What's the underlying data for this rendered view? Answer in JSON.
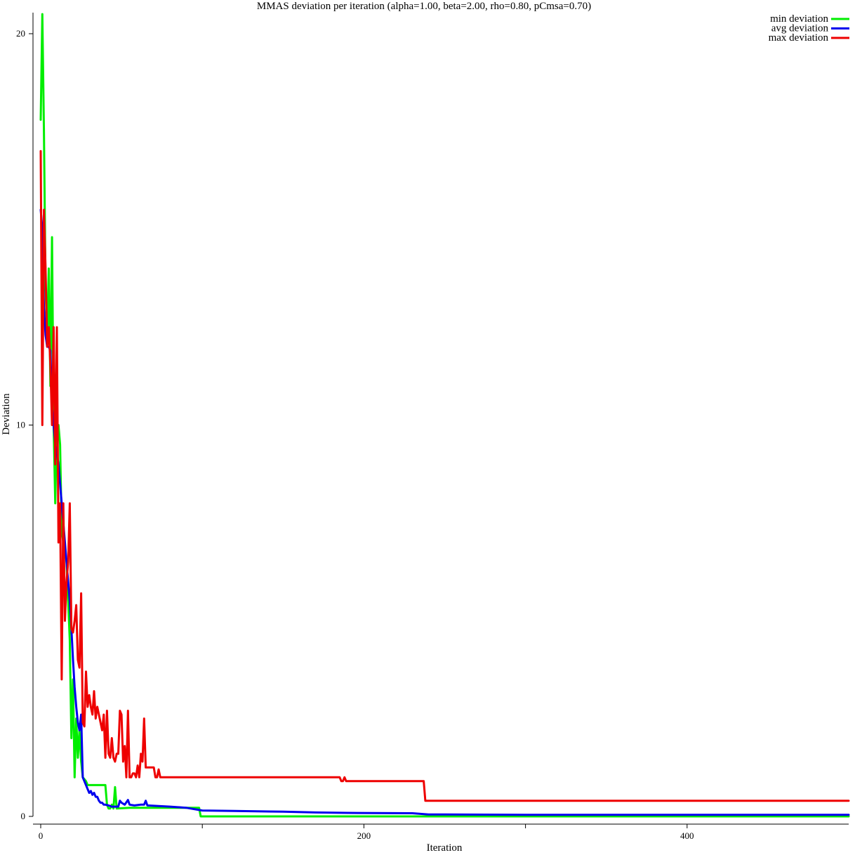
{
  "chart_data": {
    "type": "line",
    "title": "MMAS deviation per iteration (alpha=1.00, beta=2.00, rho=0.80, pCmsa=0.70)",
    "xlabel": "Iteration",
    "ylabel": "Deviation",
    "xlim": [
      0,
      500
    ],
    "ylim": [
      0,
      20.5
    ],
    "xticks": [
      0,
      100,
      200,
      300,
      400
    ],
    "xtick_labels": [
      "0",
      "",
      "200",
      "",
      "400"
    ],
    "yticks": [
      0,
      10,
      20
    ],
    "ytick_labels": [
      "0",
      "10",
      "20"
    ],
    "grid": false,
    "legend": "top-right",
    "series": [
      {
        "name": "min deviation",
        "color": "#00ee00",
        "points": [
          [
            0,
            17.8
          ],
          [
            1,
            20.5
          ],
          [
            2,
            17.5
          ],
          [
            3,
            13.5
          ],
          [
            4,
            12.3
          ],
          [
            5,
            14.0
          ],
          [
            6,
            11.0
          ],
          [
            7,
            14.8
          ],
          [
            8,
            10.0
          ],
          [
            9,
            8.0
          ],
          [
            10,
            10.0
          ],
          [
            11,
            10.0
          ],
          [
            12,
            9.5
          ],
          [
            13,
            7.3
          ],
          [
            14,
            7.0
          ],
          [
            15,
            6.8
          ],
          [
            16,
            6.5
          ],
          [
            17,
            5.5
          ],
          [
            18,
            4.5
          ],
          [
            19,
            2.0
          ],
          [
            20,
            3.5
          ],
          [
            21,
            1.0
          ],
          [
            22,
            2.5
          ],
          [
            23,
            1.5
          ],
          [
            24,
            2.2
          ],
          [
            25,
            1.4
          ],
          [
            26,
            1.0
          ],
          [
            27,
            0.95
          ],
          [
            28,
            0.9
          ],
          [
            29,
            0.8
          ],
          [
            30,
            0.8
          ],
          [
            40,
            0.8
          ],
          [
            41,
            0.3
          ],
          [
            42,
            0.2
          ],
          [
            43,
            0.2
          ],
          [
            44,
            0.3
          ],
          [
            45,
            0.2
          ],
          [
            46,
            0.75
          ],
          [
            47,
            0.2
          ],
          [
            55,
            0.22
          ],
          [
            80,
            0.22
          ],
          [
            98,
            0.22
          ],
          [
            99,
            0.0
          ],
          [
            500,
            0.0
          ]
        ]
      },
      {
        "name": "avg deviation",
        "color": "#0000ee",
        "points": [
          [
            0,
            15.5
          ],
          [
            1,
            15.0
          ],
          [
            2,
            13.0
          ],
          [
            3,
            12.3
          ],
          [
            4,
            12.0
          ],
          [
            5,
            12.0
          ],
          [
            6,
            11.9
          ],
          [
            7,
            10.5
          ],
          [
            8,
            10.0
          ],
          [
            9,
            9.5
          ],
          [
            10,
            9.3
          ],
          [
            11,
            9.0
          ],
          [
            12,
            8.5
          ],
          [
            13,
            8.0
          ],
          [
            14,
            7.5
          ],
          [
            15,
            7.0
          ],
          [
            16,
            6.5
          ],
          [
            17,
            6.0
          ],
          [
            18,
            5.5
          ],
          [
            19,
            4.8
          ],
          [
            20,
            4.0
          ],
          [
            21,
            3.3
          ],
          [
            22,
            2.8
          ],
          [
            23,
            2.4
          ],
          [
            24,
            2.2
          ],
          [
            25,
            2.6
          ],
          [
            26,
            1.0
          ],
          [
            27,
            0.9
          ],
          [
            28,
            0.8
          ],
          [
            29,
            0.7
          ],
          [
            30,
            0.6
          ],
          [
            31,
            0.65
          ],
          [
            32,
            0.55
          ],
          [
            33,
            0.6
          ],
          [
            34,
            0.5
          ],
          [
            35,
            0.5
          ],
          [
            36,
            0.4
          ],
          [
            37,
            0.35
          ],
          [
            38,
            0.35
          ],
          [
            39,
            0.3
          ],
          [
            40,
            0.3
          ],
          [
            42,
            0.28
          ],
          [
            44,
            0.25
          ],
          [
            46,
            0.25
          ],
          [
            48,
            0.25
          ],
          [
            49,
            0.4
          ],
          [
            50,
            0.35
          ],
          [
            52,
            0.3
          ],
          [
            54,
            0.42
          ],
          [
            55,
            0.3
          ],
          [
            58,
            0.28
          ],
          [
            62,
            0.3
          ],
          [
            64,
            0.3
          ],
          [
            65,
            0.4
          ],
          [
            66,
            0.28
          ],
          [
            70,
            0.27
          ],
          [
            80,
            0.25
          ],
          [
            90,
            0.22
          ],
          [
            100,
            0.15
          ],
          [
            120,
            0.14
          ],
          [
            150,
            0.12
          ],
          [
            170,
            0.1
          ],
          [
            190,
            0.09
          ],
          [
            230,
            0.08
          ],
          [
            240,
            0.05
          ],
          [
            300,
            0.04
          ],
          [
            400,
            0.04
          ],
          [
            500,
            0.04
          ]
        ]
      },
      {
        "name": "max deviation",
        "color": "#ee0000",
        "points": [
          [
            0,
            17.0
          ],
          [
            1,
            10.0
          ],
          [
            2,
            15.5
          ],
          [
            3,
            14.0
          ],
          [
            4,
            12.0
          ],
          [
            5,
            12.5
          ],
          [
            6,
            11.5
          ],
          [
            7,
            10.0
          ],
          [
            8,
            12.5
          ],
          [
            9,
            9.0
          ],
          [
            10,
            12.5
          ],
          [
            11,
            7.0
          ],
          [
            12,
            8.0
          ],
          [
            13,
            3.5
          ],
          [
            14,
            8.0
          ],
          [
            15,
            5.0
          ],
          [
            16,
            6.0
          ],
          [
            17,
            6.5
          ],
          [
            18,
            8.0
          ],
          [
            19,
            4.8
          ],
          [
            20,
            4.7
          ],
          [
            21,
            5.0
          ],
          [
            22,
            5.4
          ],
          [
            23,
            4.0
          ],
          [
            24,
            3.8
          ],
          [
            25,
            5.7
          ],
          [
            26,
            2.4
          ],
          [
            27,
            2.3
          ],
          [
            28,
            3.7
          ],
          [
            29,
            2.8
          ],
          [
            30,
            3.1
          ],
          [
            31,
            2.8
          ],
          [
            32,
            2.6
          ],
          [
            33,
            3.2
          ],
          [
            34,
            2.5
          ],
          [
            35,
            2.8
          ],
          [
            36,
            2.6
          ],
          [
            37,
            2.4
          ],
          [
            38,
            2.2
          ],
          [
            39,
            2.6
          ],
          [
            40,
            1.5
          ],
          [
            41,
            2.7
          ],
          [
            42,
            1.6
          ],
          [
            43,
            1.5
          ],
          [
            44,
            2.0
          ],
          [
            45,
            1.5
          ],
          [
            46,
            1.4
          ],
          [
            47,
            1.6
          ],
          [
            48,
            1.6
          ],
          [
            49,
            2.7
          ],
          [
            50,
            2.6
          ],
          [
            51,
            1.4
          ],
          [
            52,
            1.8
          ],
          [
            53,
            1.0
          ],
          [
            54,
            2.7
          ],
          [
            55,
            1.0
          ],
          [
            56,
            1.0
          ],
          [
            57,
            1.1
          ],
          [
            58,
            1.1
          ],
          [
            59,
            1.0
          ],
          [
            60,
            1.3
          ],
          [
            61,
            1.0
          ],
          [
            62,
            1.6
          ],
          [
            63,
            1.4
          ],
          [
            64,
            2.5
          ],
          [
            65,
            1.25
          ],
          [
            70,
            1.25
          ],
          [
            71,
            1.0
          ],
          [
            72,
            1.0
          ],
          [
            73,
            1.2
          ],
          [
            74,
            1.0
          ],
          [
            150,
            1.0
          ],
          [
            185,
            1.0
          ],
          [
            186,
            0.9
          ],
          [
            187,
            0.9
          ],
          [
            188,
            1.0
          ],
          [
            189,
            0.9
          ],
          [
            237,
            0.9
          ],
          [
            238,
            0.4
          ],
          [
            500,
            0.4
          ]
        ]
      }
    ]
  }
}
